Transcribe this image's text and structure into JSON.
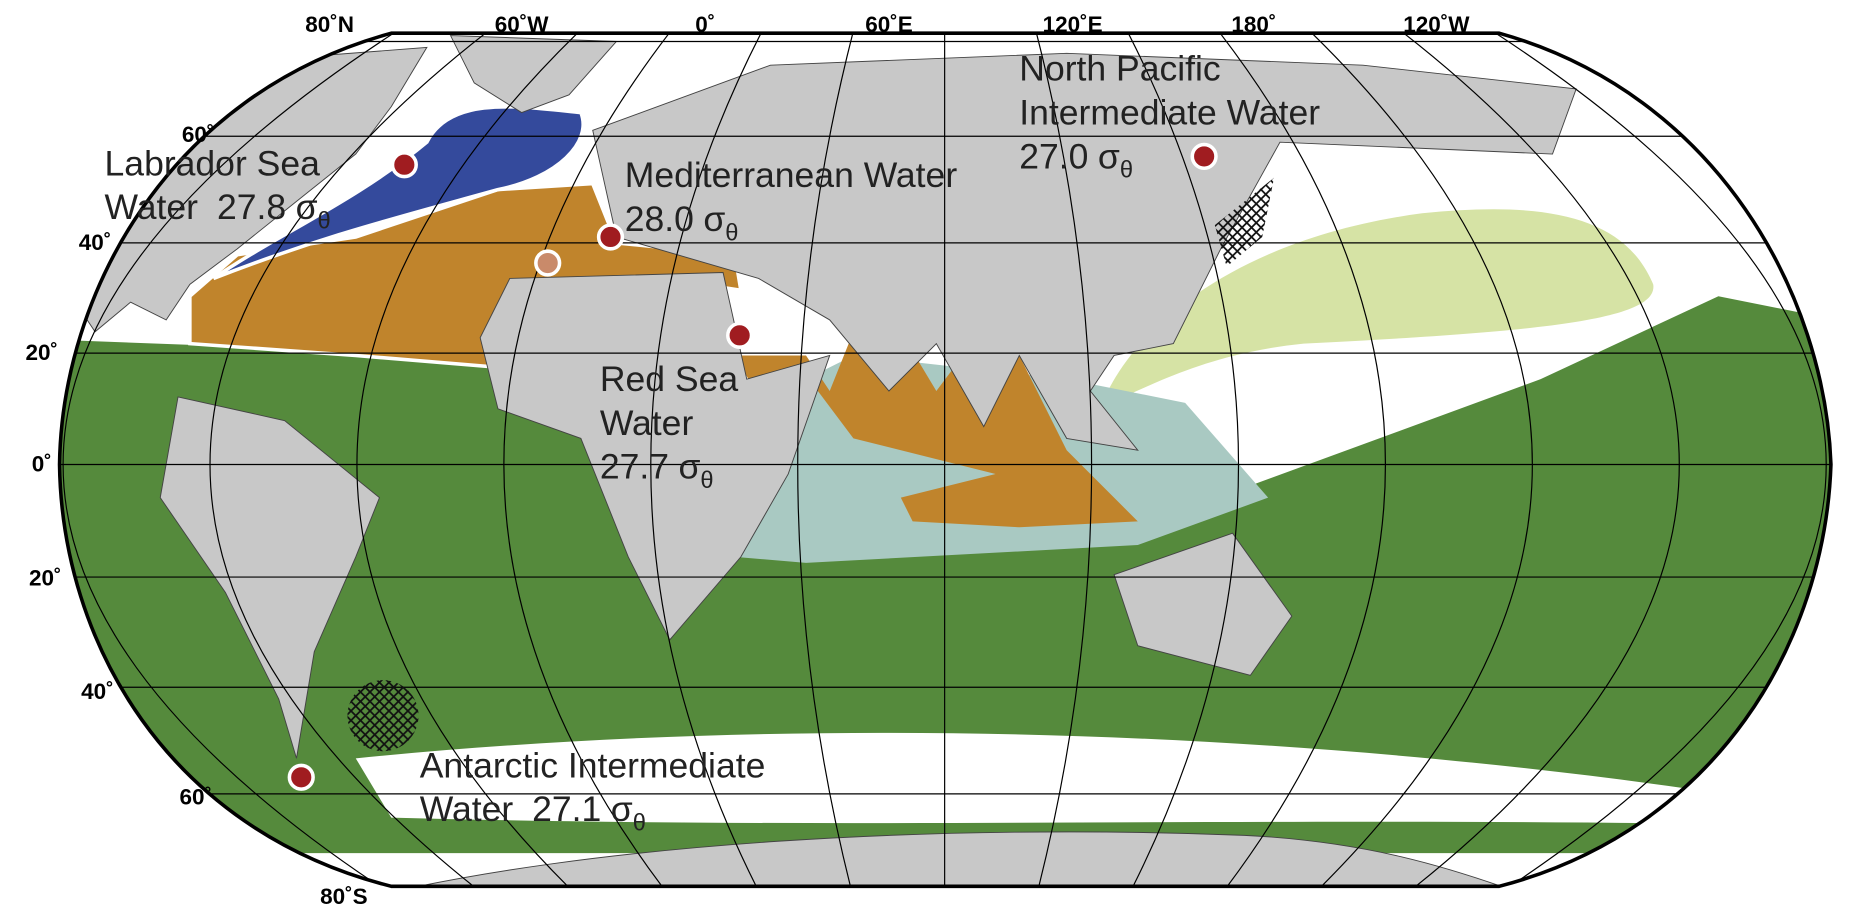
{
  "map": {
    "longitude_labels": [
      "80˚N",
      "60˚W",
      "0˚",
      "60˚E",
      "120˚E",
      "180˚",
      "120˚W"
    ],
    "latitude_labels": [
      "60˚",
      "40˚",
      "20˚",
      "0˚",
      "20˚",
      "40˚",
      "60˚",
      "80˚S"
    ],
    "symbol": "σ",
    "subscript": "θ",
    "water_masses": [
      {
        "lines": [
          "Labrador Sea",
          "Water"
        ],
        "density": "27.8"
      },
      {
        "lines": [
          "Mediterranean Water"
        ],
        "density": "28.0"
      },
      {
        "lines": [
          "Red Sea",
          "Water"
        ],
        "density": "27.7"
      },
      {
        "lines": [
          "North Pacific",
          "Intermediate Water"
        ],
        "density": "27.0"
      },
      {
        "lines": [
          "Antarctic Intermediate",
          "Water"
        ],
        "density": "27.1"
      }
    ]
  }
}
